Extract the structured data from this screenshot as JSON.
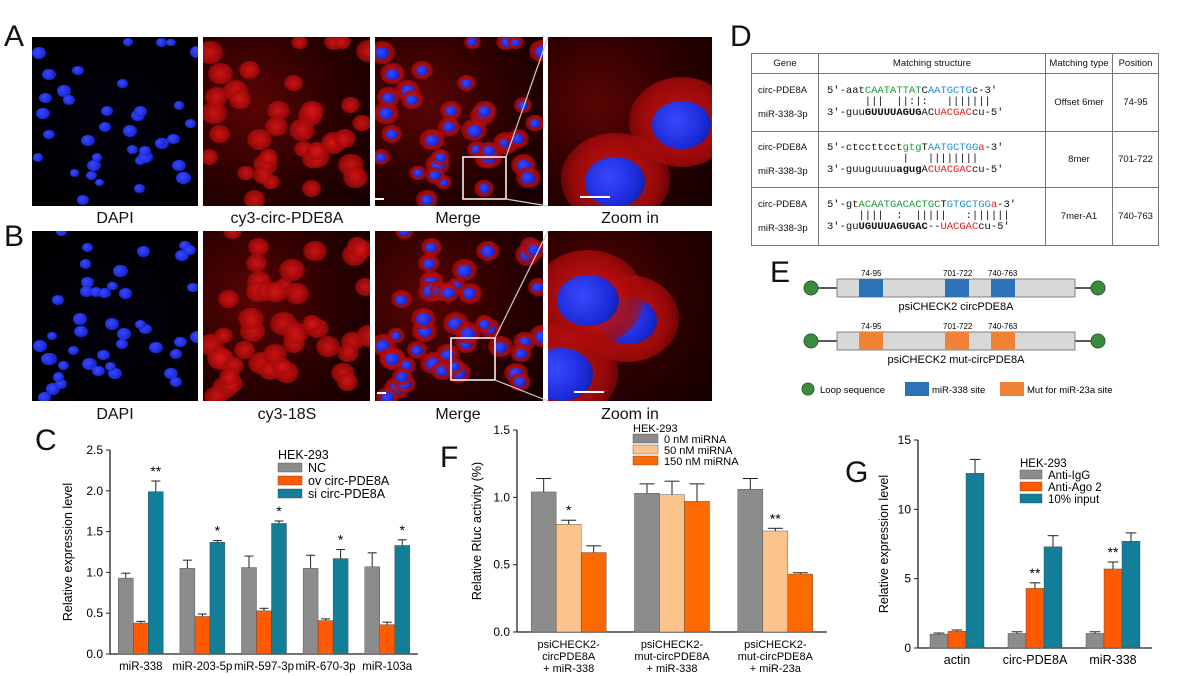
{
  "panel_labels": {
    "A": "A",
    "B": "B",
    "C": "C",
    "D": "D",
    "E": "E",
    "F": "F",
    "G": "G"
  },
  "row_a_captions": [
    "DAPI",
    "cy3-circ-PDE8A",
    "Merge",
    "Zoom in"
  ],
  "row_b_captions": [
    "DAPI",
    "cy3-18S",
    "Merge",
    "Zoom in"
  ],
  "colors": {
    "nuclei": "#1c2bd8",
    "cytoplasm": "#d41414",
    "gray": "#8c8c8c",
    "orange": "#ff5a00",
    "teal": "#137e98",
    "light_orange": "#fbc48c",
    "mid_orange": "#ff6a00",
    "blue_site": "#2b72b8",
    "orange_site": "#f08238",
    "loop": "#3c8a3c"
  },
  "table": {
    "headers": [
      "Gene",
      "Matching structure",
      "Matching type",
      "Position"
    ],
    "rows": [
      {
        "gene1": "circ-PDE8A",
        "gene2": "miR-338-3p",
        "type": "Offset 6mer",
        "position": "74-95"
      },
      {
        "gene1": "circ-PDE8A",
        "gene2": "miR-338-3p",
        "type": "8mer",
        "position": "701-722"
      },
      {
        "gene1": "circ-PDE8A",
        "gene2": "miR-338-3p",
        "type": "7mer-A1",
        "position": "740-763"
      }
    ]
  },
  "construct": {
    "wt_label": "psiCHECK2 circPDE8A",
    "mut_label": "psiCHECK2 mut-circPDE8A",
    "sites": [
      "74-95",
      "701-722",
      "740-763"
    ],
    "legend": [
      "Loop sequence",
      "miR-338 site",
      "Mut for miR-23a site"
    ]
  },
  "chart_data": [
    {
      "panel": "C",
      "type": "bar",
      "ylabel": "Relative expression level",
      "ylim": [
        0,
        2.5
      ],
      "yticks": [
        "0.0",
        "0.5",
        "1.0",
        "1.5",
        "2.0",
        "2.5"
      ],
      "legend_title": "HEK-293",
      "categories": [
        "miR-338",
        "miR-203-5p",
        "miR-597-3p",
        "miR-670-3p",
        "miR-103a"
      ],
      "series": [
        {
          "name": "NC",
          "values": [
            0.93,
            1.05,
            1.06,
            1.05,
            1.07
          ],
          "errors": [
            0.06,
            0.1,
            0.14,
            0.16,
            0.17
          ]
        },
        {
          "name": "ov circ-PDE8A",
          "values": [
            0.38,
            0.46,
            0.53,
            0.41,
            0.36
          ],
          "errors": [
            0.02,
            0.03,
            0.03,
            0.02,
            0.03
          ]
        },
        {
          "name": "si circ-PDE8A",
          "values": [
            1.99,
            1.37,
            1.6,
            1.17,
            1.33
          ],
          "errors": [
            0.13,
            0.02,
            0.03,
            0.11,
            0.07
          ]
        }
      ],
      "annotations": [
        "**",
        "*",
        "*",
        "*",
        "*"
      ]
    },
    {
      "panel": "F",
      "type": "bar",
      "ylabel": "Relative Rluc activity (%)",
      "ylim": [
        0,
        1.5
      ],
      "yticks": [
        "0.0",
        "0.5",
        "1.0",
        "1.5"
      ],
      "legend_title": "HEK-293",
      "categories": [
        [
          "psiCHECK2-",
          "circPDE8A",
          "+ miR-338"
        ],
        [
          "psiCHECK2-",
          "mut-circPDE8A",
          "+ miR-338"
        ],
        [
          "psiCHECK2-",
          "mut-circPDE8A",
          "+ miR-23a"
        ]
      ],
      "series": [
        {
          "name": "0 nM miRNA",
          "values": [
            1.04,
            1.03,
            1.06
          ],
          "errors": [
            0.1,
            0.07,
            0.08
          ]
        },
        {
          "name": "50 nM miRNA",
          "values": [
            0.8,
            1.02,
            0.75
          ],
          "errors": [
            0.03,
            0.1,
            0.02
          ]
        },
        {
          "name": "150 nM miRNA",
          "values": [
            0.59,
            0.97,
            0.43
          ],
          "errors": [
            0.05,
            0.13,
            0.01
          ]
        }
      ],
      "annotations": [
        "*",
        "",
        "**"
      ]
    },
    {
      "panel": "G",
      "type": "bar",
      "ylabel": "Relative expression level",
      "ylim": [
        0,
        15
      ],
      "yticks": [
        "0",
        "5",
        "10",
        "15"
      ],
      "legend_title": "HEK-293",
      "categories": [
        "actin",
        "circ-PDE8A",
        "miR-338"
      ],
      "series": [
        {
          "name": "Anti-IgG",
          "values": [
            1.0,
            1.05,
            1.05
          ],
          "errors": [
            0.08,
            0.12,
            0.12
          ]
        },
        {
          "name": "Anti-Ago 2",
          "values": [
            1.2,
            4.3,
            5.7
          ],
          "errors": [
            0.1,
            0.4,
            0.5
          ]
        },
        {
          "name": "10% input",
          "values": [
            12.6,
            7.3,
            7.7
          ],
          "errors": [
            1.0,
            0.8,
            0.6
          ]
        }
      ],
      "annotations": [
        "",
        "**",
        "**"
      ]
    }
  ]
}
